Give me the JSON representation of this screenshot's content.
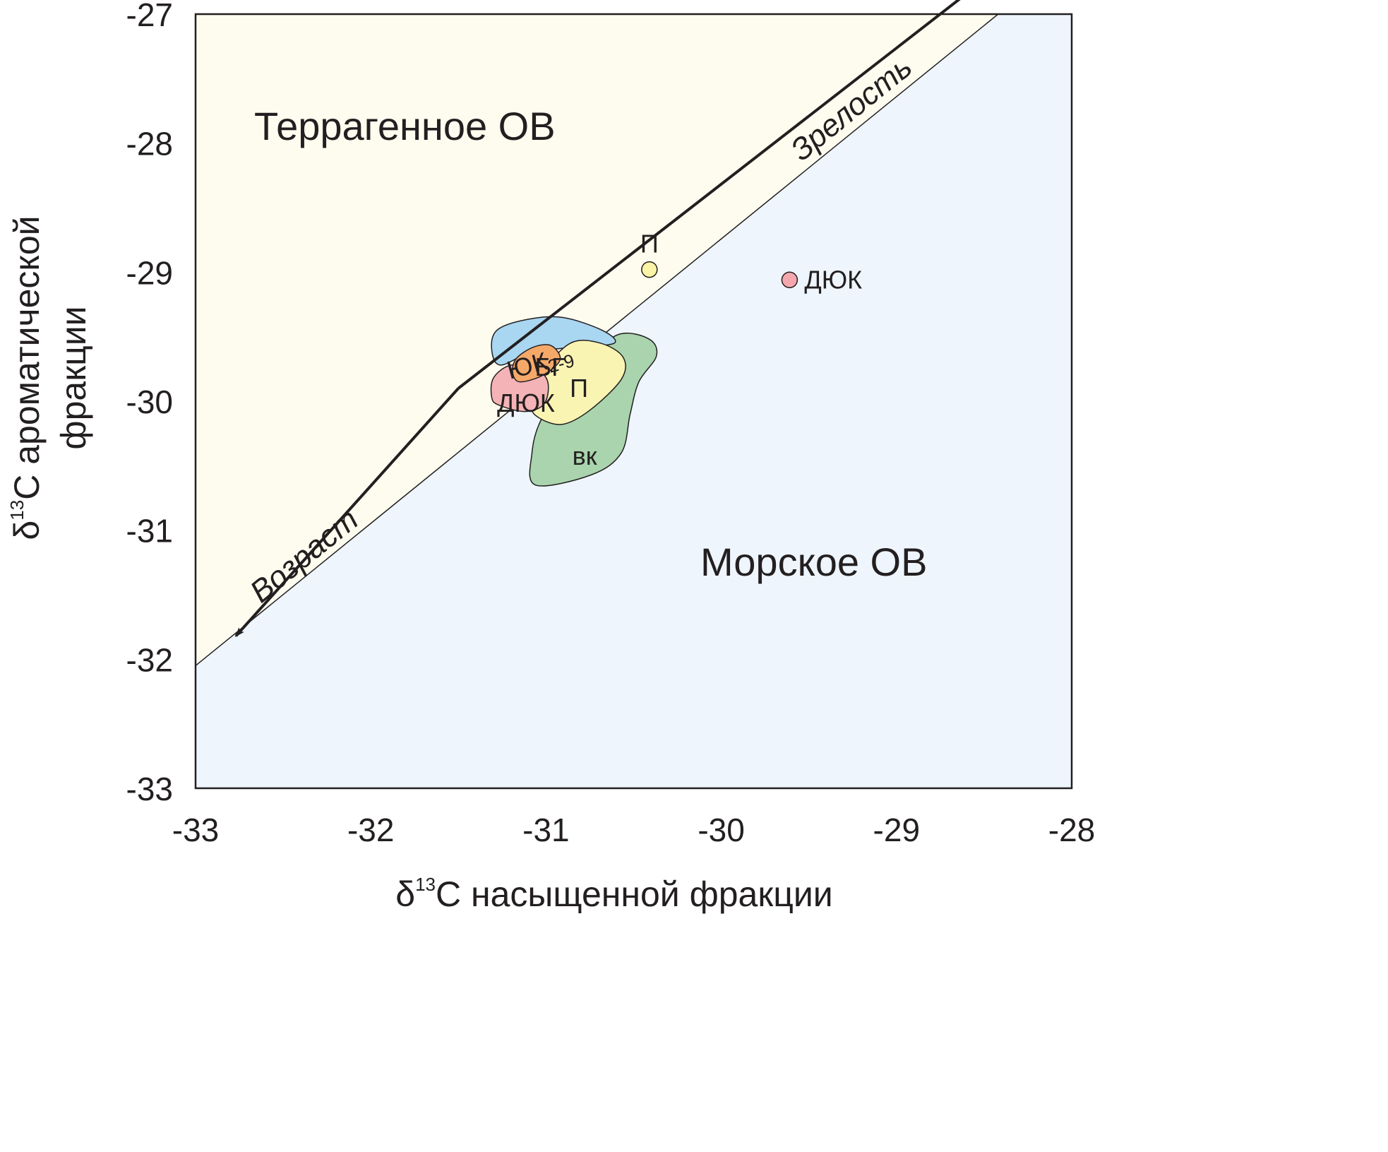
{
  "chart_data": {
    "type": "scatter",
    "xlabel": {
      "prefix": "δ",
      "sup": "13",
      "text": "C насыщенной фракции"
    },
    "ylabel": {
      "prefix": "δ",
      "sup": "13",
      "line1": "C ароматической",
      "line2": "фракции"
    },
    "xlim": [
      -33,
      -28
    ],
    "ylim": [
      -33,
      -27
    ],
    "x_ticks": [
      -33,
      -32,
      -31,
      -30,
      -29,
      -28
    ],
    "y_ticks": [
      -33,
      -32,
      -31,
      -30,
      -29,
      -28,
      -27
    ],
    "x_tick_labels": [
      "-33",
      "-32",
      "-31",
      "-30",
      "-29",
      "-28"
    ],
    "y_tick_labels": [
      "-33",
      "-32",
      "-31",
      "-30",
      "-29",
      "-28",
      "-27"
    ],
    "grid": false,
    "divider": {
      "x1": -33,
      "y1": -32.05,
      "x2": -28.42,
      "y2": -27
    },
    "regions": [
      {
        "label": "Террагенное ОВ",
        "color": "#fdfcef",
        "side": "upper"
      },
      {
        "label": "Морское ОВ",
        "color": "#eef5fd",
        "side": "lower"
      }
    ],
    "arrows": [
      {
        "label": "Зрелость",
        "from": [
          -31.5,
          -29.9
        ],
        "to": [
          -28.58,
          -26.82
        ]
      },
      {
        "label": "Возраст",
        "from": [
          -31.5,
          -29.9
        ],
        "to": [
          -32.77,
          -31.82
        ]
      }
    ],
    "fields": [
      {
        "label": "вк",
        "color": "#a9d4ad",
        "outline": [
          [
            -31.06,
            -30.65
          ],
          [
            -30.74,
            -30.57
          ],
          [
            -30.57,
            -30.4
          ],
          [
            -30.52,
            -30.1
          ],
          [
            -30.47,
            -29.85
          ],
          [
            -30.37,
            -29.65
          ],
          [
            -30.41,
            -29.52
          ],
          [
            -30.58,
            -29.48
          ],
          [
            -30.75,
            -29.66
          ],
          [
            -30.91,
            -29.93
          ],
          [
            -31.03,
            -30.15
          ],
          [
            -31.08,
            -30.4
          ]
        ]
      },
      {
        "label": "ЮК",
        "sub": "2-9",
        "color": "#a9d6f1",
        "outline": [
          [
            -31.26,
            -29.72
          ],
          [
            -31.08,
            -29.62
          ],
          [
            -30.82,
            -29.58
          ],
          [
            -30.61,
            -29.55
          ],
          [
            -30.68,
            -29.45
          ],
          [
            -30.91,
            -29.35
          ],
          [
            -31.12,
            -29.37
          ],
          [
            -31.28,
            -29.45
          ],
          [
            -31.31,
            -29.6
          ]
        ]
      },
      {
        "label": "П",
        "color": "#faf4b3",
        "outline": [
          [
            -31.05,
            -30.12
          ],
          [
            -30.91,
            -30.18
          ],
          [
            -30.75,
            -30.07
          ],
          [
            -30.57,
            -29.83
          ],
          [
            -30.56,
            -29.66
          ],
          [
            -30.69,
            -29.55
          ],
          [
            -30.86,
            -29.55
          ],
          [
            -31.02,
            -29.78
          ],
          [
            -31.08,
            -30.02
          ]
        ]
      },
      {
        "label": "ДЮК",
        "color": "#f4b3b6",
        "outline": [
          [
            -31.27,
            -30.03
          ],
          [
            -31.12,
            -30.08
          ],
          [
            -31.01,
            -30.02
          ],
          [
            -30.99,
            -29.85
          ],
          [
            -31.06,
            -29.75
          ],
          [
            -31.2,
            -29.72
          ],
          [
            -31.3,
            -29.82
          ],
          [
            -31.31,
            -29.97
          ]
        ]
      },
      {
        "label": "БГ",
        "color": "#f5a969",
        "outline": [
          [
            -31.15,
            -29.85
          ],
          [
            -31.02,
            -29.8
          ],
          [
            -30.92,
            -29.68
          ],
          [
            -30.97,
            -29.57
          ],
          [
            -31.07,
            -29.58
          ],
          [
            -31.17,
            -29.67
          ],
          [
            -31.19,
            -29.78
          ]
        ]
      }
    ],
    "points": [
      {
        "label": "П",
        "x": -30.41,
        "y": -28.98,
        "color": "#fbf3a5",
        "label_pos": "above"
      },
      {
        "label": "ДЮК",
        "x": -29.61,
        "y": -29.06,
        "color": "#f4a8ad",
        "label_pos": "right"
      }
    ]
  }
}
